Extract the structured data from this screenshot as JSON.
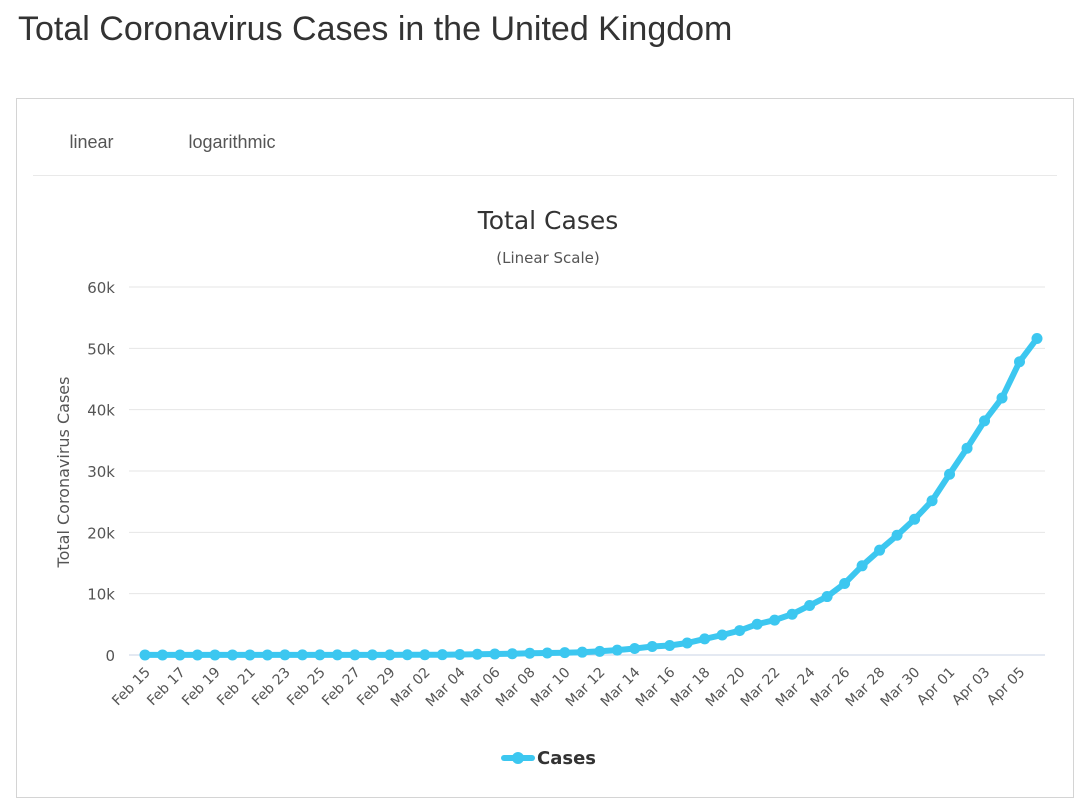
{
  "page": {
    "title": "Total Coronavirus Cases in the United Kingdom"
  },
  "tabs": [
    {
      "label": "linear",
      "active": true
    },
    {
      "label": "logarithmic",
      "active": false
    }
  ],
  "colors": {
    "series": "#3cc7f0",
    "grid": "#e6e6e6",
    "tab_active": "#3cc7f0"
  },
  "chart_data": {
    "type": "line",
    "title": "Total Cases",
    "subtitle": "(Linear Scale)",
    "ylabel": "Total Coronavirus Cases",
    "xlabel": "",
    "ylim": [
      0,
      60000
    ],
    "yticks": [
      0,
      10000,
      20000,
      30000,
      40000,
      50000,
      60000
    ],
    "ytick_labels": [
      "0",
      "10k",
      "20k",
      "30k",
      "40k",
      "50k",
      "60k"
    ],
    "legend": "bottom-center",
    "grid": true,
    "x": [
      "Feb 15",
      "Feb 16",
      "Feb 17",
      "Feb 18",
      "Feb 19",
      "Feb 20",
      "Feb 21",
      "Feb 22",
      "Feb 23",
      "Feb 24",
      "Feb 25",
      "Feb 26",
      "Feb 27",
      "Feb 28",
      "Feb 29",
      "Mar 01",
      "Mar 02",
      "Mar 03",
      "Mar 04",
      "Mar 05",
      "Mar 06",
      "Mar 07",
      "Mar 08",
      "Mar 09",
      "Mar 10",
      "Mar 11",
      "Mar 12",
      "Mar 13",
      "Mar 14",
      "Mar 15",
      "Mar 16",
      "Mar 17",
      "Mar 18",
      "Mar 19",
      "Mar 20",
      "Mar 21",
      "Mar 22",
      "Mar 23",
      "Mar 24",
      "Mar 25",
      "Mar 26",
      "Mar 27",
      "Mar 28",
      "Mar 29",
      "Mar 30",
      "Mar 31",
      "Apr 01",
      "Apr 02",
      "Apr 03",
      "Apr 04",
      "Apr 05",
      "Apr 06"
    ],
    "xtick_labels": [
      "Feb 15",
      "Feb 17",
      "Feb 19",
      "Feb 21",
      "Feb 23",
      "Feb 25",
      "Feb 27",
      "Feb 29",
      "Mar 02",
      "Mar 04",
      "Mar 06",
      "Mar 08",
      "Mar 10",
      "Mar 12",
      "Mar 14",
      "Mar 16",
      "Mar 18",
      "Mar 20",
      "Mar 22",
      "Mar 24",
      "Mar 26",
      "Mar 28",
      "Mar 30",
      "Apr 01",
      "Apr 03",
      "Apr 05"
    ],
    "series": [
      {
        "name": "Cases",
        "values": [
          9,
          9,
          9,
          9,
          9,
          9,
          9,
          9,
          13,
          13,
          13,
          13,
          15,
          20,
          23,
          36,
          40,
          51,
          87,
          116,
          164,
          209,
          278,
          321,
          383,
          460,
          596,
          797,
          1061,
          1391,
          1543,
          1950,
          2626,
          3269,
          3983,
          5018,
          5683,
          6650,
          8077,
          9529,
          11658,
          14543,
          17089,
          19522,
          22141,
          25150,
          29474,
          33718,
          38168,
          41903,
          47806,
          51608
        ]
      }
    ]
  }
}
